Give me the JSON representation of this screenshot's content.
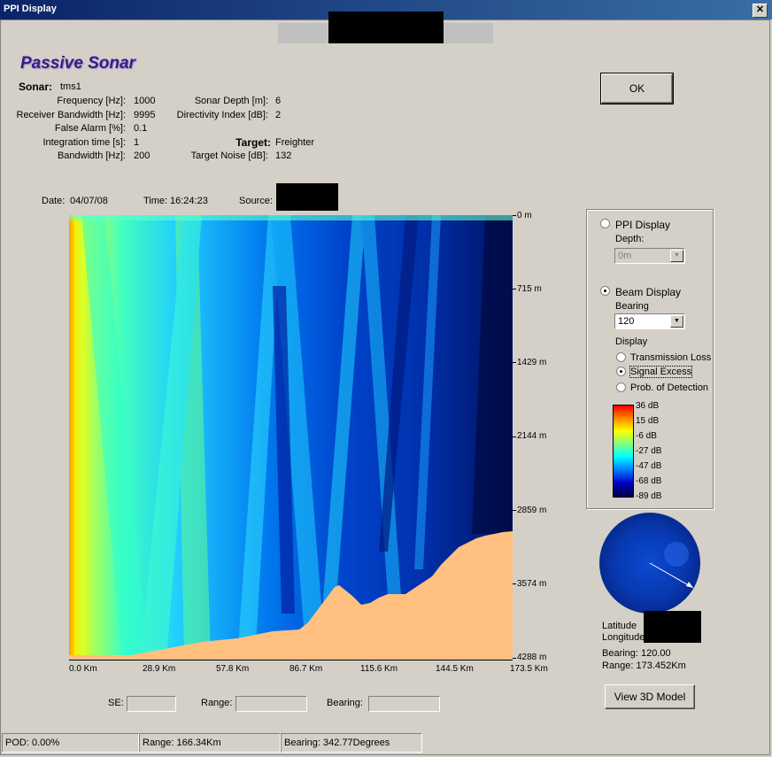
{
  "window": {
    "title": "PPI Display",
    "close_glyph": "✕"
  },
  "heading": "Passive Sonar",
  "ok_button": "OK",
  "sonar": {
    "label": "Sonar:",
    "name": "tms1",
    "fields": [
      {
        "label": "Frequency [Hz]:",
        "value": "1000"
      },
      {
        "label": "Receiver Bandwidth [Hz]:",
        "value": "9995"
      },
      {
        "label": "False Alarm [%]:",
        "value": "0.1"
      },
      {
        "label": "Integration time [s]:",
        "value": "1"
      },
      {
        "label": "Bandwidth [Hz]:",
        "value": "200"
      }
    ],
    "right_fields": [
      {
        "label": "Sonar Depth [m]:",
        "value": "6"
      },
      {
        "label": "Directivity Index [dB]:",
        "value": "2"
      }
    ],
    "target_label": "Target:",
    "target_value": "Freighter",
    "target_noise_label": "Target Noise [dB]:",
    "target_noise_value": "132"
  },
  "info": {
    "date_label": "Date:",
    "date": "04/07/08",
    "time_label": "Time:",
    "time": "16:24:23",
    "source_label": "Source:"
  },
  "plot": {
    "y_ticks": [
      "0 m",
      "715 m",
      "1429 m",
      "2144 m",
      "2859 m",
      "3574 m",
      "4288 m"
    ],
    "x_ticks": [
      "0.0 Km",
      "28.9 Km",
      "57.8 Km",
      "86.7 Km",
      "115.6 Km",
      "144.5 Km",
      "173.5 Km"
    ]
  },
  "readouts": {
    "se_label": "SE:",
    "range_label": "Range:",
    "bearing_label": "Bearing:"
  },
  "panel": {
    "ppi_display": "PPI Display",
    "depth_label": "Depth:",
    "depth_value": "0m",
    "beam_display": "Beam Display",
    "bearing_label": "Bearing",
    "bearing_value": "120",
    "display_label": "Display",
    "transmission_loss": "Transmission Loss",
    "signal_excess": "Signal Excess",
    "prob_detection": "Prob. of Detection",
    "selected_mode": "Beam Display",
    "selected_display": "Signal Excess"
  },
  "colorbar": {
    "labels": [
      "36 dB",
      "15 dB",
      "-6 dB",
      "-27 dB",
      "-47 dB",
      "-68 dB",
      "-89 dB"
    ],
    "colors": [
      "#ff0000",
      "#ffaa00",
      "#ffff00",
      "#66ff99",
      "#00ffff",
      "#0077ff",
      "#0000aa",
      "#000033"
    ]
  },
  "position": {
    "latitude_label": "Latitude",
    "longitude_label": "Longitude",
    "bearing": "Bearing: 120.00",
    "range": "Range: 173.452Km"
  },
  "view3d_button": "View 3D Model",
  "status": {
    "pod": "POD: 0.00%",
    "range": "Range: 166.34Km",
    "bearing": "Bearing: 342.77Degrees"
  }
}
